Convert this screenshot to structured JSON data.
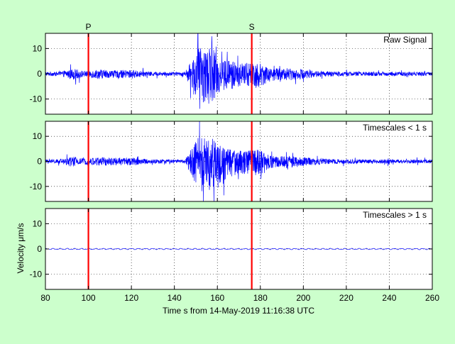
{
  "figure": {
    "background": "#ccffcc",
    "xlabel": "Time s from 14-May-2019 11:16:38 UTC",
    "ylabel": "Velocity μm/s"
  },
  "chart_data": [
    {
      "type": "line",
      "title": "Raw Signal",
      "xlim": [
        80,
        260
      ],
      "ylim": [
        -16,
        16
      ],
      "yticks": [
        -10,
        0,
        10
      ],
      "xticks": [
        80,
        100,
        120,
        140,
        160,
        180,
        200,
        220,
        240,
        260
      ],
      "grid": true,
      "series": [
        {
          "color": "#0000ff",
          "amp_min": -16,
          "amp_max": 13.5,
          "peak_time": 153
        }
      ],
      "markers": [
        {
          "label": "P",
          "x": 100,
          "color": "#ff0000"
        },
        {
          "label": "S",
          "x": 176,
          "color": "#ff0000"
        }
      ]
    },
    {
      "type": "line",
      "title": "Timescales < 1 s",
      "xlim": [
        80,
        260
      ],
      "ylim": [
        -16,
        16
      ],
      "yticks": [
        -10,
        0,
        10
      ],
      "xticks": [
        80,
        100,
        120,
        140,
        160,
        180,
        200,
        220,
        240,
        260
      ],
      "grid": true,
      "series": [
        {
          "color": "#0000ff",
          "amp_min": -16,
          "amp_max": 13.5,
          "peak_time": 153
        }
      ],
      "markers": [
        {
          "label": "P",
          "x": 100,
          "color": "#ff0000"
        },
        {
          "label": "S",
          "x": 176,
          "color": "#ff0000"
        }
      ]
    },
    {
      "type": "line",
      "title": "Timescales > 1 s",
      "xlim": [
        80,
        260
      ],
      "ylim": [
        -16,
        16
      ],
      "yticks": [
        -10,
        0,
        10
      ],
      "xticks": [
        80,
        100,
        120,
        140,
        160,
        180,
        200,
        220,
        240,
        260
      ],
      "grid": true,
      "series": [
        {
          "color": "#0000ff",
          "amp_min": -0.7,
          "amp_max": 0.7,
          "peak_time": 153
        }
      ],
      "markers": [
        {
          "label": "P",
          "x": 100,
          "color": "#ff0000"
        },
        {
          "label": "S",
          "x": 176,
          "color": "#ff0000"
        }
      ]
    }
  ]
}
